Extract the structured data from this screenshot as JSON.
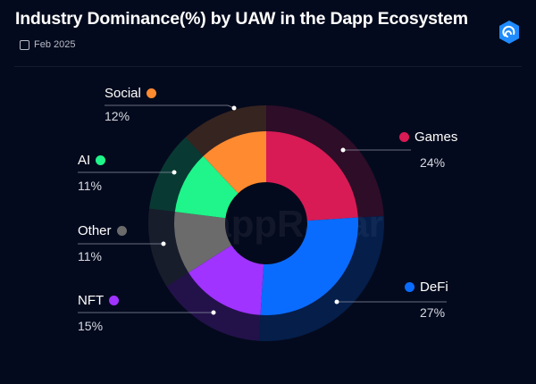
{
  "header": {
    "title": "Industry Dominance(%) by UAW in the Dapp Ecosystem",
    "date": "Feb 2025",
    "logo_icon": "dappradar-logo-icon",
    "calendar_icon": "calendar-icon"
  },
  "watermark": "DappRadar",
  "chart_data": {
    "type": "pie",
    "title": "Industry Dominance(%) by UAW in the Dapp Ecosystem",
    "categories": [
      "Games",
      "DeFi",
      "NFT",
      "Other",
      "AI",
      "Social"
    ],
    "values": [
      24,
      27,
      15,
      11,
      11,
      12
    ],
    "labels": [
      "24%",
      "27%",
      "15%",
      "11%",
      "11%",
      "12%"
    ],
    "colors": [
      "#d81b55",
      "#0a6cff",
      "#a033ff",
      "#6b6b6b",
      "#1ff58a",
      "#ff8a30"
    ],
    "donut": true
  }
}
